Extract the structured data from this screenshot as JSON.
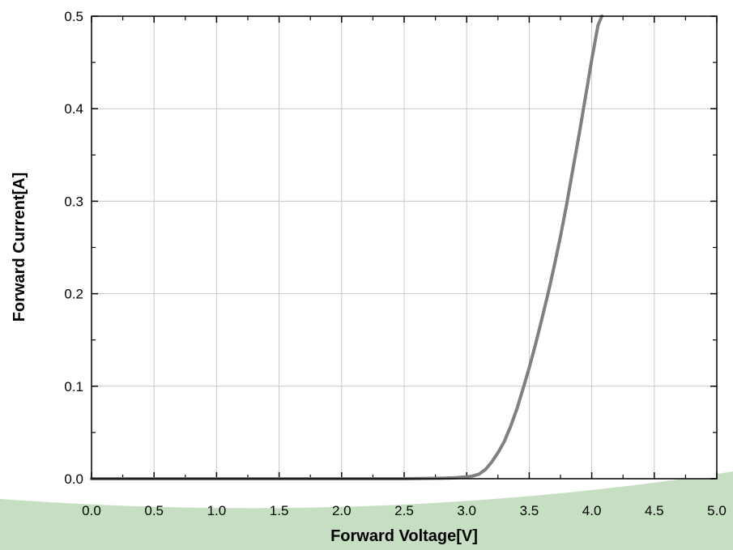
{
  "chart_data": {
    "type": "line",
    "title": "",
    "xlabel": "Forward Voltage[V]",
    "ylabel": "Forward Current[A]",
    "xlim": [
      0.0,
      5.0
    ],
    "ylim": [
      0.0,
      0.5
    ],
    "xticks": [
      "0.0",
      "0.5",
      "1.0",
      "1.5",
      "2.0",
      "2.5",
      "3.0",
      "3.5",
      "4.0",
      "4.5",
      "5.0"
    ],
    "yticks": [
      "0.0",
      "0.1",
      "0.2",
      "0.3",
      "0.4",
      "0.5"
    ],
    "grid": true,
    "series": [
      {
        "color": "#808080",
        "x": [
          0.0,
          1.0,
          2.0,
          2.5,
          2.8,
          2.9,
          3.0,
          3.05,
          3.1,
          3.15,
          3.2,
          3.25,
          3.3,
          3.35,
          3.4,
          3.45,
          3.5,
          3.55,
          3.6,
          3.65,
          3.7,
          3.75,
          3.8,
          3.85,
          3.9,
          3.95,
          4.0,
          4.05,
          4.08
        ],
        "y": [
          0.0,
          0.0,
          0.0,
          0.0,
          0.0005,
          0.001,
          0.002,
          0.003,
          0.005,
          0.01,
          0.018,
          0.028,
          0.04,
          0.056,
          0.075,
          0.097,
          0.12,
          0.145,
          0.172,
          0.2,
          0.23,
          0.262,
          0.297,
          0.335,
          0.373,
          0.413,
          0.453,
          0.49,
          0.5
        ]
      }
    ]
  },
  "colors": {
    "curve": "#808080",
    "grid": "#c8c8c8",
    "swoosh": "#c6dec2"
  }
}
